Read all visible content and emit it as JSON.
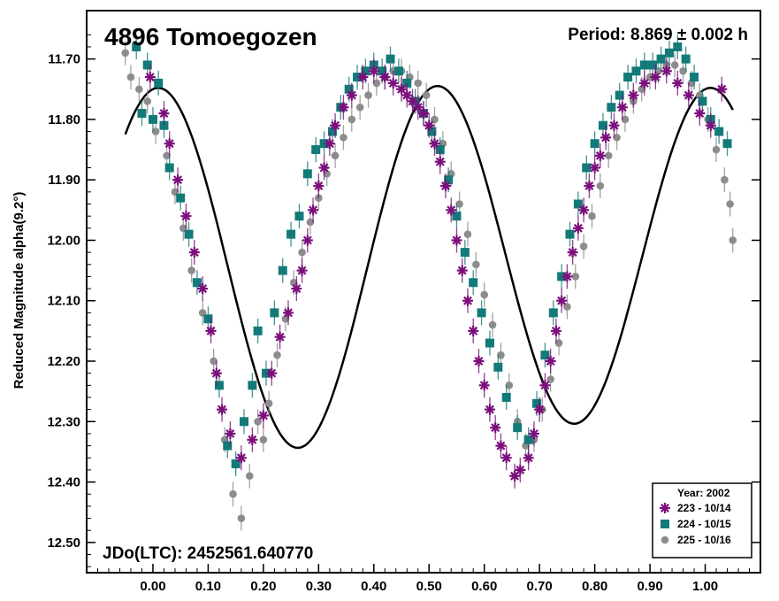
{
  "chart_data": {
    "type": "scatter",
    "title": "4896 Tomoegozen",
    "period_label": "Period: 8.869 ± 0.002 h",
    "epoch_label": "JDo(LTC): 2452561.640770",
    "xlabel": "",
    "ylabel": "Reduced Magnitude alpha(9.2°)",
    "xlim": [
      -0.12,
      1.1
    ],
    "ylim": [
      12.55,
      11.62
    ],
    "y_inverted": true,
    "x_ticks": [
      0.0,
      0.1,
      0.2,
      0.3,
      0.4,
      0.5,
      0.6,
      0.7,
      0.8,
      0.9,
      1.0
    ],
    "x_tick_labels": [
      "0.00",
      "0.10",
      "0.20",
      "0.30",
      "0.40",
      "0.50",
      "0.60",
      "0.70",
      "0.80",
      "0.90",
      "1.00"
    ],
    "y_ticks": [
      11.7,
      11.8,
      11.9,
      12.0,
      12.1,
      12.2,
      12.3,
      12.4,
      12.5
    ],
    "y_tick_labels": [
      "11.70",
      "11.80",
      "11.90",
      "12.00",
      "12.10",
      "12.20",
      "12.30",
      "12.40",
      "12.50"
    ],
    "legend": {
      "position": "bottom-right",
      "title": "Year: 2002",
      "entries": [
        {
          "label": "223 - 10/14",
          "marker": "asterisk",
          "color": "#7b0f7b"
        },
        {
          "label": "224 - 10/15",
          "marker": "square",
          "color": "#127a78"
        },
        {
          "label": "225 - 10/16",
          "marker": "circle",
          "color": "#8c8c8c"
        }
      ]
    },
    "fit_curve": {
      "mean": 12.035,
      "a1": 0.0,
      "b1": 0.02,
      "a2": -0.285,
      "b2": -0.045
    },
    "series": [
      {
        "name": "223 - 10/14",
        "marker": "asterisk",
        "color": "#7b0f7b",
        "x": [
          -0.005,
          0.02,
          0.03,
          0.045,
          0.06,
          0.075,
          0.09,
          0.105,
          0.115,
          0.125,
          0.14,
          0.16,
          0.18,
          0.2,
          0.215,
          0.23,
          0.245,
          0.26,
          0.27,
          0.28,
          0.29,
          0.3,
          0.31,
          0.32,
          0.33,
          0.345,
          0.36,
          0.38,
          0.4,
          0.42,
          0.435,
          0.45,
          0.46,
          0.47,
          0.48,
          0.49,
          0.5,
          0.51,
          0.52,
          0.53,
          0.54,
          0.55,
          0.56,
          0.57,
          0.58,
          0.59,
          0.6,
          0.61,
          0.62,
          0.63,
          0.64,
          0.655,
          0.665,
          0.68,
          0.69,
          0.7,
          0.71,
          0.72,
          0.73,
          0.74,
          0.75,
          0.76,
          0.77,
          0.78,
          0.79,
          0.8,
          0.81,
          0.82,
          0.835,
          0.85,
          0.87,
          0.89,
          0.91,
          0.93,
          0.95,
          0.97,
          0.99,
          1.01,
          1.03
        ],
        "y": [
          11.73,
          11.79,
          11.84,
          11.9,
          11.96,
          12.02,
          12.08,
          12.15,
          12.22,
          12.28,
          12.32,
          12.36,
          12.33,
          12.29,
          12.22,
          12.16,
          12.12,
          12.08,
          12.05,
          12.0,
          11.95,
          11.91,
          11.88,
          11.84,
          11.81,
          11.78,
          11.76,
          11.73,
          11.72,
          11.73,
          11.74,
          11.75,
          11.76,
          11.77,
          11.78,
          11.79,
          11.81,
          11.84,
          11.87,
          11.91,
          11.95,
          12.0,
          12.05,
          12.1,
          12.15,
          12.2,
          12.24,
          12.28,
          12.31,
          12.34,
          12.36,
          12.39,
          12.38,
          12.36,
          12.32,
          12.28,
          12.24,
          12.2,
          12.15,
          12.1,
          12.06,
          12.02,
          11.98,
          11.95,
          11.91,
          11.88,
          11.86,
          11.83,
          11.81,
          11.78,
          11.76,
          11.74,
          11.73,
          11.72,
          11.74,
          11.76,
          11.79,
          11.81,
          11.75
        ]
      },
      {
        "name": "224 - 10/15",
        "marker": "square",
        "color": "#127a78",
        "x": [
          -0.03,
          -0.02,
          -0.01,
          0.0,
          0.01,
          0.02,
          0.03,
          0.05,
          0.065,
          0.08,
          0.1,
          0.12,
          0.135,
          0.15,
          0.165,
          0.18,
          0.19,
          0.205,
          0.22,
          0.235,
          0.25,
          0.265,
          0.28,
          0.295,
          0.31,
          0.325,
          0.34,
          0.355,
          0.37,
          0.385,
          0.4,
          0.415,
          0.43,
          0.445,
          0.46,
          0.475,
          0.49,
          0.505,
          0.52,
          0.535,
          0.55,
          0.565,
          0.58,
          0.595,
          0.61,
          0.625,
          0.64,
          0.66,
          0.68,
          0.695,
          0.71,
          0.725,
          0.74,
          0.755,
          0.77,
          0.785,
          0.8,
          0.815,
          0.83,
          0.845,
          0.86,
          0.875,
          0.89,
          0.905,
          0.92,
          0.935,
          0.95,
          0.965,
          0.98,
          0.995,
          1.01,
          1.025,
          1.04
        ],
        "y": [
          11.68,
          11.79,
          11.71,
          11.8,
          11.74,
          11.81,
          11.88,
          11.93,
          11.99,
          12.07,
          12.13,
          12.24,
          12.34,
          12.37,
          12.3,
          12.24,
          12.15,
          12.22,
          12.12,
          12.05,
          11.99,
          11.96,
          11.89,
          11.85,
          11.84,
          11.82,
          11.78,
          11.75,
          11.73,
          11.72,
          11.71,
          11.72,
          11.7,
          11.72,
          11.74,
          11.77,
          11.79,
          11.82,
          11.85,
          11.9,
          11.96,
          12.02,
          12.07,
          12.12,
          12.17,
          12.21,
          12.26,
          12.31,
          12.33,
          12.27,
          12.19,
          12.12,
          12.06,
          11.99,
          11.94,
          11.88,
          11.84,
          11.81,
          11.78,
          11.76,
          11.73,
          11.72,
          11.71,
          11.71,
          11.7,
          11.69,
          11.68,
          11.7,
          11.73,
          11.77,
          11.8,
          11.82,
          11.84
        ]
      },
      {
        "name": "225 - 10/16",
        "marker": "circle",
        "color": "#8c8c8c",
        "x": [
          -0.05,
          -0.04,
          -0.025,
          -0.01,
          0.005,
          0.025,
          0.04,
          0.055,
          0.07,
          0.09,
          0.11,
          0.13,
          0.145,
          0.16,
          0.175,
          0.19,
          0.2,
          0.21,
          0.225,
          0.24,
          0.255,
          0.27,
          0.285,
          0.3,
          0.315,
          0.33,
          0.345,
          0.36,
          0.375,
          0.39,
          0.405,
          0.42,
          0.435,
          0.45,
          0.465,
          0.48,
          0.495,
          0.51,
          0.525,
          0.54,
          0.555,
          0.57,
          0.585,
          0.6,
          0.615,
          0.63,
          0.645,
          0.66,
          0.675,
          0.69,
          0.705,
          0.72,
          0.735,
          0.75,
          0.765,
          0.78,
          0.795,
          0.81,
          0.825,
          0.84,
          0.855,
          0.87,
          0.885,
          0.9,
          0.915,
          0.93,
          0.945,
          0.96,
          0.975,
          0.99,
          1.005,
          1.02,
          1.035,
          1.045,
          1.05
        ],
        "y": [
          11.69,
          11.73,
          11.75,
          11.77,
          11.82,
          11.86,
          11.92,
          11.98,
          12.05,
          12.12,
          12.2,
          12.33,
          12.42,
          12.46,
          12.39,
          12.3,
          12.33,
          12.27,
          12.19,
          12.13,
          12.07,
          12.02,
          11.97,
          11.93,
          11.89,
          11.86,
          11.83,
          11.8,
          11.78,
          11.76,
          11.74,
          11.73,
          11.72,
          11.72,
          11.73,
          11.74,
          11.76,
          11.8,
          11.84,
          11.89,
          11.94,
          11.99,
          12.04,
          12.09,
          12.14,
          12.19,
          12.24,
          12.3,
          12.34,
          12.33,
          12.28,
          12.23,
          12.17,
          12.11,
          12.06,
          12.01,
          11.96,
          11.91,
          11.86,
          11.83,
          11.8,
          11.77,
          11.75,
          11.73,
          11.72,
          11.71,
          11.71,
          11.72,
          11.74,
          11.76,
          11.8,
          11.85,
          11.9,
          11.94,
          12.0
        ]
      }
    ]
  }
}
